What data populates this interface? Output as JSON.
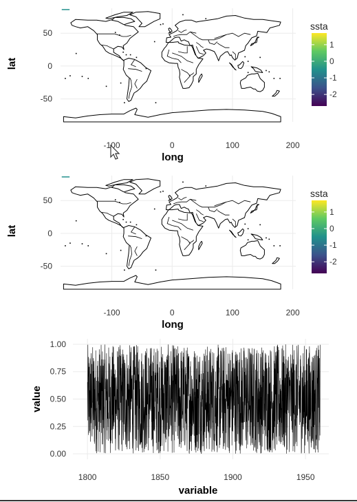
{
  "chart_data": [
    {
      "type": "map",
      "xlabel": "long",
      "ylabel": "lat",
      "x_ticks": [
        -100,
        0,
        100,
        200
      ],
      "y_ticks": [
        50,
        0,
        -50
      ],
      "xlim": [
        -185,
        205
      ],
      "ylim": [
        -85,
        88
      ],
      "legend": {
        "title": "ssta",
        "ticks": [
          1,
          0,
          -1,
          -2
        ],
        "range": [
          -2.7,
          1.7
        ],
        "colors": [
          "#440154",
          "#3b528b",
          "#21918c",
          "#5ec962",
          "#fde725"
        ],
        "position": "right"
      },
      "grid": true
    },
    {
      "type": "map",
      "xlabel": "long",
      "ylabel": "lat",
      "x_ticks": [
        -100,
        0,
        100,
        200
      ],
      "y_ticks": [
        50,
        0,
        -50
      ],
      "xlim": [
        -185,
        205
      ],
      "ylim": [
        -85,
        88
      ],
      "legend": {
        "title": "ssta",
        "ticks": [
          1,
          0,
          -1,
          -2
        ],
        "range": [
          -2.7,
          1.7
        ],
        "colors": [
          "#440154",
          "#3b528b",
          "#21918c",
          "#5ec962",
          "#fde725"
        ],
        "position": "right"
      },
      "grid": true
    },
    {
      "type": "line",
      "xlabel": "variable",
      "ylabel": "value",
      "x_ticks": [
        1800,
        1850,
        1900,
        1950
      ],
      "y_ticks": [
        1.0,
        0.75,
        0.5,
        0.25,
        0.0
      ],
      "y_tick_labels": [
        "1.00",
        "0.75",
        "0.50",
        "0.25",
        "0.00"
      ],
      "xlim": [
        1790,
        1966
      ],
      "ylim": [
        -0.05,
        1.05
      ],
      "series": [
        {
          "x_range": [
            1800,
            1960
          ],
          "n_points": 1600,
          "value_range": [
            0,
            1
          ],
          "color": "#000000"
        }
      ],
      "grid": true
    }
  ]
}
